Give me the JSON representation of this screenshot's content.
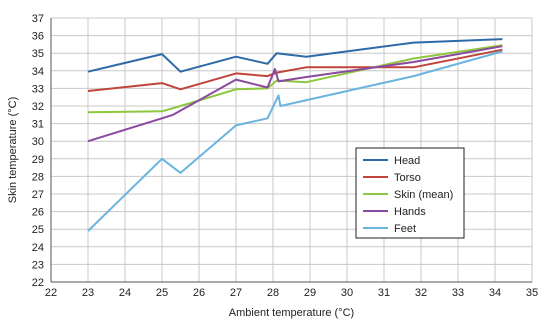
{
  "chart_data": {
    "type": "line",
    "title": "",
    "xlabel": "Ambient temperature (°C)",
    "ylabel": "Skin temperature (°C)",
    "xlim": [
      22,
      35
    ],
    "ylim": [
      22,
      37
    ],
    "xticks": [
      "22",
      "23",
      "24",
      "25",
      "26",
      "27",
      "28",
      "29",
      "30",
      "31",
      "32",
      "33",
      "34",
      "35"
    ],
    "yticks": [
      "22",
      "23",
      "24",
      "25",
      "26",
      "27",
      "28",
      "29",
      "30",
      "31",
      "32",
      "33",
      "34",
      "35",
      "36",
      "37"
    ],
    "grid": true,
    "legend_position": "lower-right",
    "series": [
      {
        "name": "Head",
        "color": "#2e6aa8",
        "points": [
          [
            23,
            33.95
          ],
          [
            25,
            34.95
          ],
          [
            25.5,
            33.95
          ],
          [
            27,
            34.8
          ],
          [
            27.85,
            34.4
          ],
          [
            28.1,
            35.0
          ],
          [
            28.9,
            34.8
          ],
          [
            31.8,
            35.6
          ],
          [
            34.2,
            35.8
          ]
        ]
      },
      {
        "name": "Torso",
        "color": "#c0443b",
        "points": [
          [
            23,
            32.85
          ],
          [
            25,
            33.3
          ],
          [
            25.5,
            32.95
          ],
          [
            27,
            33.85
          ],
          [
            27.85,
            33.7
          ],
          [
            28.1,
            33.9
          ],
          [
            28.9,
            34.2
          ],
          [
            31.8,
            34.2
          ],
          [
            34.2,
            35.2
          ]
        ]
      },
      {
        "name": "Skin (mean)",
        "color": "#8dc63f",
        "points": [
          [
            23,
            31.65
          ],
          [
            25,
            31.7
          ],
          [
            25.5,
            32.0
          ],
          [
            27,
            32.95
          ],
          [
            27.85,
            33.0
          ],
          [
            28.1,
            33.45
          ],
          [
            28.9,
            33.35
          ],
          [
            31.8,
            34.7
          ],
          [
            34.2,
            35.45
          ]
        ]
      },
      {
        "name": "Hands",
        "color": "#8b4aa0",
        "points": [
          [
            23,
            30.0
          ],
          [
            25,
            31.3
          ],
          [
            25.3,
            31.5
          ],
          [
            27,
            33.5
          ],
          [
            27.85,
            33.05
          ],
          [
            28.05,
            34.1
          ],
          [
            28.15,
            33.4
          ],
          [
            28.9,
            33.65
          ],
          [
            31.8,
            34.5
          ],
          [
            34.2,
            35.4
          ]
        ]
      },
      {
        "name": "Feet",
        "color": "#6ab4e0",
        "points": [
          [
            23,
            24.9
          ],
          [
            25,
            29.0
          ],
          [
            25.5,
            28.2
          ],
          [
            27,
            30.9
          ],
          [
            27.85,
            31.3
          ],
          [
            28.15,
            32.6
          ],
          [
            28.2,
            32.0
          ],
          [
            31.8,
            33.7
          ],
          [
            34.2,
            35.1
          ]
        ]
      }
    ]
  }
}
